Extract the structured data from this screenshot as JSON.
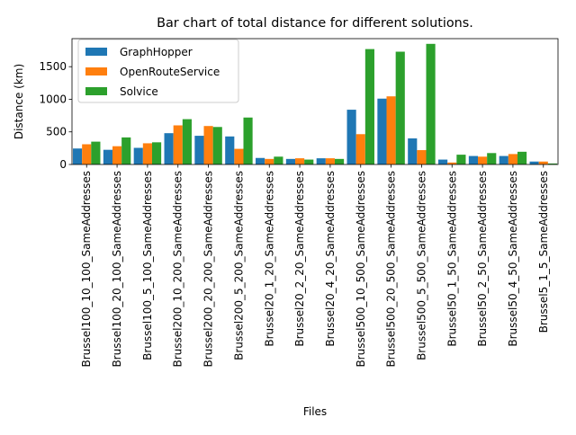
{
  "chart_data": {
    "type": "bar",
    "title": "Bar chart of total distance for different solutions.",
    "xlabel": "Files",
    "ylabel": "Distance (km)",
    "ylim": [
      0,
      1930
    ],
    "yticks": [
      0,
      500,
      1000,
      1500
    ],
    "grid": false,
    "legend_position": "top-left",
    "categories": [
      "Brussel100_10_100_SameAddresses",
      "Brussel100_20_100_SameAddresses",
      "Brussel100_5_100_SameAddresses",
      "Brussel200_10_200_SameAddresses",
      "Brussel200_20_200_SameAddresses",
      "Brussel200_5_200_SameAddresses",
      "Brussel20_1_20_SameAddresses",
      "Brussel20_2_20_SameAddresses",
      "Brussel20_4_20_SameAddresses",
      "Brussel500_10_500_SameAddresses",
      "Brussel500_20_500_SameAddresses",
      "Brussel500_5_500_SameAddresses",
      "Brussel50_1_50_SameAddresses",
      "Brussel50_2_50_SameAddresses",
      "Brussel50_4_50_SameAddresses",
      "Brussel5_1_5_SameAddresses"
    ],
    "series": [
      {
        "name": "GraphHopper",
        "color": "#1f77b4",
        "values": [
          245,
          225,
          255,
          480,
          440,
          430,
          100,
          85,
          95,
          840,
          1010,
          400,
          75,
          130,
          130,
          45
        ]
      },
      {
        "name": "OpenRouteService",
        "color": "#ff7f0e",
        "values": [
          310,
          280,
          325,
          600,
          590,
          240,
          85,
          95,
          95,
          465,
          1045,
          220,
          30,
          120,
          160,
          45
        ]
      },
      {
        "name": "Solvice",
        "color": "#2ca02c",
        "values": [
          350,
          415,
          340,
          695,
          575,
          720,
          120,
          75,
          85,
          1770,
          1730,
          1850,
          150,
          175,
          195,
          15
        ]
      }
    ]
  }
}
